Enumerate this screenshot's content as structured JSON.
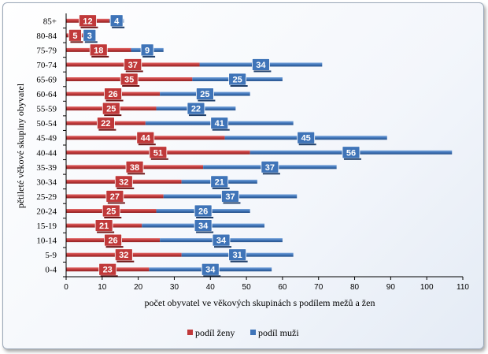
{
  "chart_data": {
    "type": "bar",
    "orientation": "horizontal",
    "stacked": true,
    "categories": [
      "0-4",
      "5-9",
      "10-14",
      "15-19",
      "20-24",
      "25-29",
      "30-34",
      "35-39",
      "40-44",
      "45-49",
      "50-54",
      "55-59",
      "60-64",
      "65-69",
      "70-74",
      "75-79",
      "80-84",
      "85+"
    ],
    "series": [
      {
        "name": "podíl ženy",
        "color": "#c0393a",
        "values": [
          23,
          32,
          26,
          21,
          25,
          27,
          32,
          38,
          51,
          44,
          22,
          25,
          26,
          35,
          37,
          18,
          5,
          12
        ]
      },
      {
        "name": "podíl muži",
        "color": "#3f74b8",
        "values": [
          34,
          31,
          34,
          34,
          26,
          37,
          21,
          37,
          56,
          45,
          41,
          22,
          25,
          25,
          34,
          9,
          3,
          4
        ]
      }
    ],
    "xlabel": "počet obyvatel ve věkových skupinách s podílem mežů a žen",
    "ylabel": "pětileté věkové skupiny obyvatel",
    "xlim": [
      0,
      110
    ],
    "xticks": [
      0,
      10,
      20,
      30,
      40,
      50,
      60,
      70,
      80,
      90,
      100,
      110
    ],
    "grid": false,
    "legend_position": "bottom"
  }
}
